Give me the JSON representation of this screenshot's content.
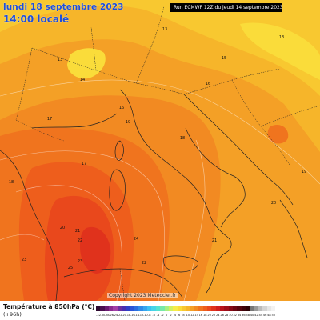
{
  "header": {
    "date": "lundi 18 septembre 2023",
    "time": "14:00 localé",
    "run_info": "Run ECMWF 12Z du jeudi 14 septembre 2023"
  },
  "copyright": "Copyright 2023 Meteociel.fr",
  "legend": {
    "title": "Température à 850hPa (°C)",
    "subtitle": "(+96h)",
    "values": [
      "-32",
      "-30",
      "-28",
      "-26",
      "-24",
      "-22",
      "-20",
      "-18",
      "-16",
      "-14",
      "-12",
      "-10",
      "-8",
      "-6",
      "-4",
      "-2",
      "0",
      "2",
      "4",
      "6",
      "8",
      "10",
      "12",
      "14",
      "16",
      "18",
      "20",
      "22",
      "24",
      "26",
      "28",
      "30",
      "32",
      "34",
      "36",
      "38",
      "40",
      "42",
      "44",
      "46",
      "48",
      "50"
    ],
    "colors": [
      "#2e0a30",
      "#4b0f4f",
      "#6b1a71",
      "#8a2a8e",
      "#a33fa6",
      "#6b2fa0",
      "#4a2fb0",
      "#2f3fc8",
      "#2a55d8",
      "#2a6ee0",
      "#2f8ae8",
      "#36a5ee",
      "#3cc0f2",
      "#46d4e8",
      "#54e2d0",
      "#78e8a8",
      "#a8ef80",
      "#d2f060",
      "#f6ec48",
      "#fadc3a",
      "#f8c830",
      "#f6b52a",
      "#f4a026",
      "#f28a22",
      "#f0741e",
      "#ee5e1c",
      "#e9481c",
      "#e0321c",
      "#d01e1e",
      "#b8141c",
      "#9e0e1a",
      "#850a16",
      "#6b0712",
      "#55050e",
      "#3f030a",
      "#2c0206",
      "#777777",
      "#999999",
      "#bbbbbb",
      "#d4d4d4",
      "#e6e6e6",
      "#f2f2f2"
    ]
  },
  "contour_labels": [
    "13",
    "13",
    "13",
    "14",
    "15",
    "16",
    "16",
    "17",
    "17",
    "18",
    "18",
    "19",
    "19",
    "20",
    "20",
    "21",
    "21",
    "22",
    "22",
    "23",
    "23",
    "24",
    "25"
  ],
  "colors": {
    "t12": "#f8c830",
    "t14": "#f6b52a",
    "t16": "#f4a026",
    "t18": "#f28a22",
    "t20": "#f0741e",
    "t22": "#ee5e1c",
    "t24": "#e9481c",
    "t26": "#e0321c",
    "title_blue": "#1f4fd8"
  }
}
